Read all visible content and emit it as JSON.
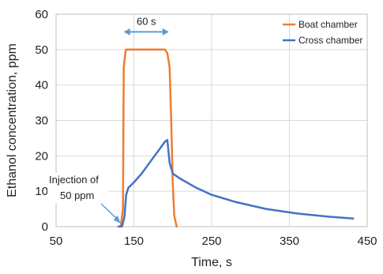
{
  "chart_data": {
    "type": "line",
    "title": "",
    "xlabel": "Time, s",
    "ylabel": "Ethanol concentration, ppm",
    "xlim": [
      50,
      450
    ],
    "ylim": [
      0,
      60
    ],
    "xticks": [
      "50",
      "150",
      "250",
      "350",
      "450"
    ],
    "yticks": [
      "0",
      "10",
      "20",
      "30",
      "40",
      "50",
      "60"
    ],
    "grid": true,
    "legend_position": "top-right",
    "series": [
      {
        "name": "Boat chamber",
        "color": "#ED7D31",
        "x": [
          133,
          136,
          137,
          139,
          140,
          150,
          170,
          190,
          193,
          196,
          198,
          200,
          202,
          205
        ],
        "y": [
          0,
          5,
          45,
          49,
          50,
          50,
          50,
          50,
          49,
          45,
          30,
          12,
          3,
          0
        ]
      },
      {
        "name": "Cross chamber",
        "color": "#4472C4",
        "x": [
          130,
          135,
          138,
          140,
          143,
          150,
          160,
          170,
          180,
          190,
          193,
          196,
          200,
          210,
          230,
          250,
          280,
          320,
          360,
          400,
          432
        ],
        "y": [
          0,
          0.1,
          3,
          9,
          11,
          12.5,
          15,
          18,
          21,
          24,
          24.5,
          18,
          15,
          13.5,
          11,
          9,
          7,
          5,
          3.7,
          2.8,
          2.3
        ]
      }
    ],
    "annotations": {
      "duration_label": "60 s",
      "duration_start": 137,
      "duration_end": 195,
      "duration_y": 55,
      "injection_label_line1": "Injection of",
      "injection_label_line2": "50 ppm",
      "injection_target_x": 135,
      "injection_target_y": 0.5,
      "annotation_color": "#5B9BD5"
    }
  }
}
